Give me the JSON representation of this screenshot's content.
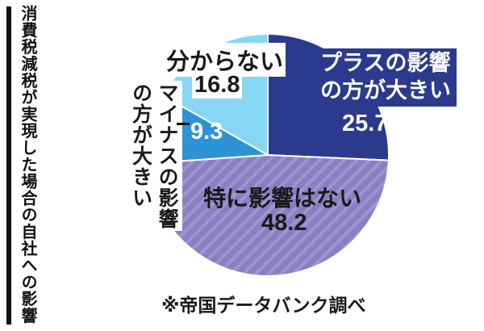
{
  "chart_data": {
    "type": "pie",
    "title": "消費税減税が実現した場合の自社への影響",
    "source": "※帝国データバンク調べ",
    "direction": "clockwise",
    "start_angle_deg": 0,
    "legend_position": "labels-on-chart",
    "series": [
      {
        "label": "プラスの影響の方が大きい",
        "value": 25.7,
        "display_value": "25.7%",
        "color": "#2c3a8e",
        "text_color": "#ffffff"
      },
      {
        "label": "特に影響はない",
        "value": 48.2,
        "display_value": "48.2",
        "color": "#8b7ec2",
        "pattern": "diagonal-stripes",
        "stripe_color": "#a094d0",
        "text_color": "#1a1a1a"
      },
      {
        "label": "マイナスの影響の方が大きい",
        "value": 9.3,
        "display_value": "9.3",
        "color": "#2e93d5",
        "text_color": "#ffffff"
      },
      {
        "label": "分からない",
        "value": 16.8,
        "display_value": "16.8",
        "color": "#86d7f3",
        "text_color": "#1a1a1a"
      }
    ]
  },
  "labels": {
    "plus_two_lines": "プラスの影響\nの方が大きい",
    "minus_two_lines": "マイナスの影響\nの方が大きい"
  },
  "colors": {
    "background": "#ffffff",
    "accent_bar": "#111111",
    "text": "#1a1a1a"
  }
}
